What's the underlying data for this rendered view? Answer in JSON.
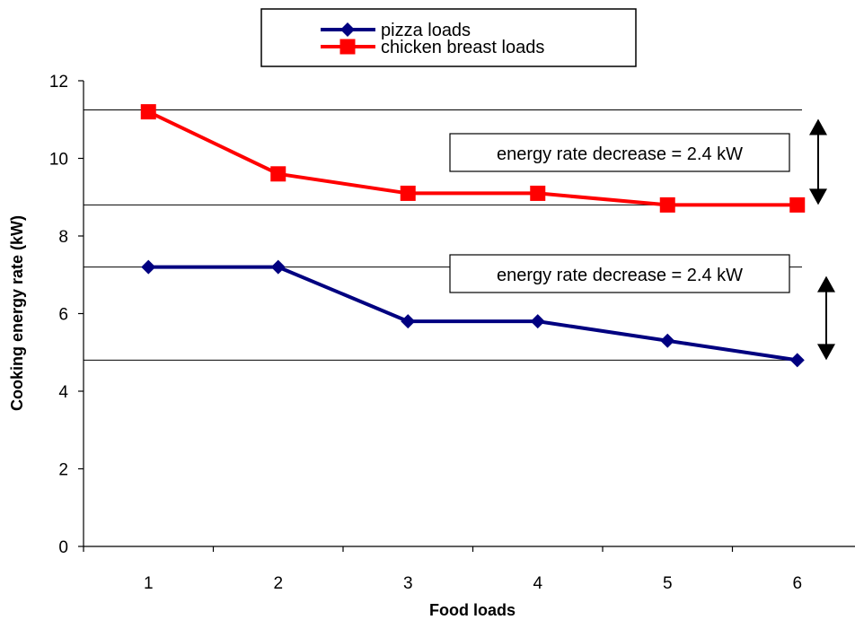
{
  "chart_data": {
    "type": "line",
    "title": "",
    "xlabel": "Food loads",
    "ylabel": "Cooking energy rate (kW)",
    "x": [
      1,
      2,
      3,
      4,
      5,
      6
    ],
    "ylim": [
      0,
      12
    ],
    "yticks": [
      "0",
      "2",
      "4",
      "6",
      "8",
      "10",
      "12"
    ],
    "xticks": [
      "1",
      "2",
      "3",
      "4",
      "5",
      "6"
    ],
    "grid": false,
    "legend_position": "top-center",
    "series": [
      {
        "name": "pizza loads",
        "values": [
          7.2,
          7.2,
          5.8,
          5.8,
          5.3,
          4.8
        ],
        "color": "#000080",
        "marker": "diamond"
      },
      {
        "name": "chicken breast loads",
        "values": [
          11.2,
          9.6,
          9.1,
          9.1,
          8.8,
          8.8
        ],
        "color": "#ff0000",
        "marker": "square"
      }
    ],
    "reference_lines": [
      11.25,
      8.8,
      7.2,
      4.8
    ],
    "annotations": [
      {
        "text": "energy rate decrease = 2.4 kW",
        "from": 11.25,
        "to": 8.8
      },
      {
        "text": "energy rate decrease = 2.4 kW",
        "from": 7.2,
        "to": 4.8
      }
    ]
  }
}
